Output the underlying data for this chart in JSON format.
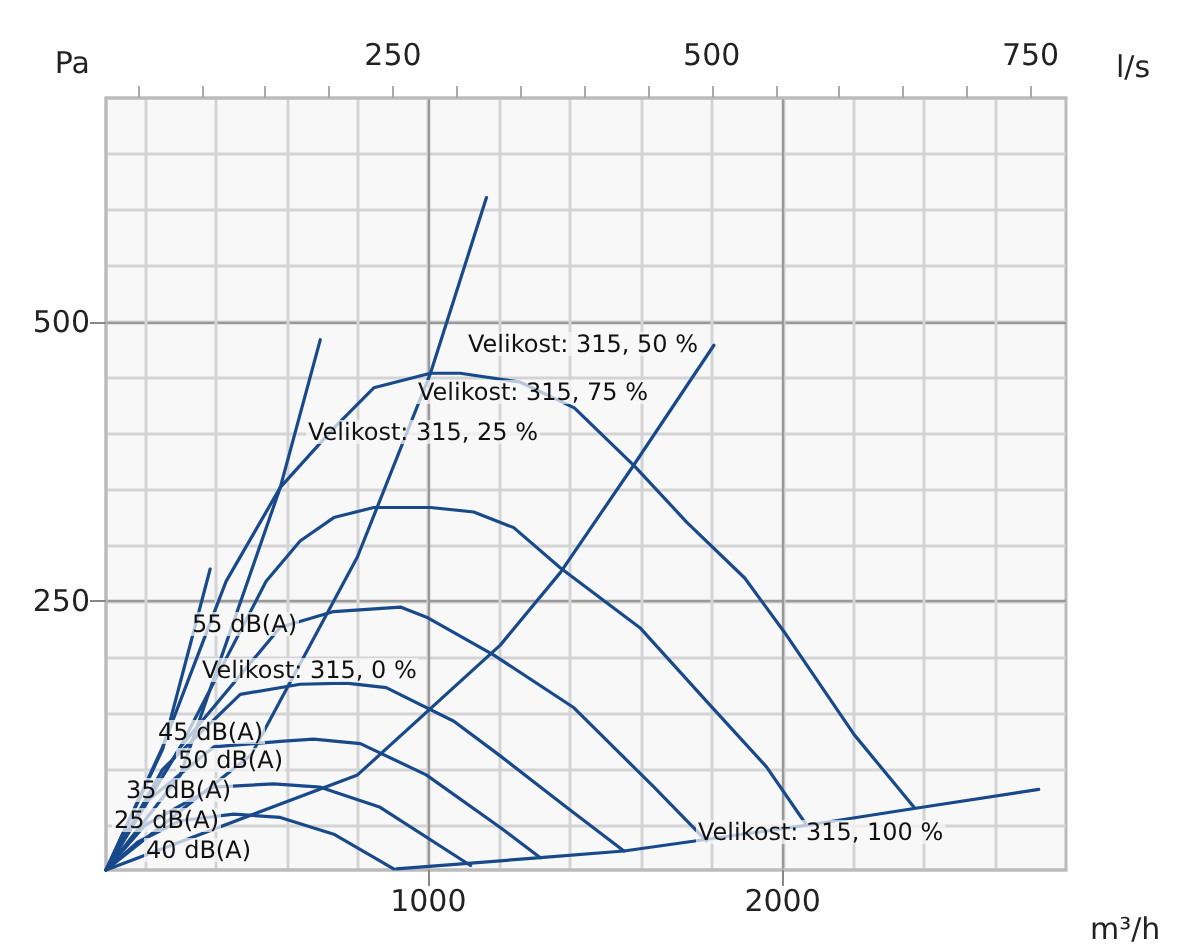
{
  "chart_data": {
    "type": "line",
    "xlabel": "m³/h",
    "ylabel": "Pa",
    "x2label": "l/s",
    "xlim": [
      90,
      2800
    ],
    "xticks": [
      {
        "value": 200,
        "label": null
      },
      {
        "value": 400,
        "label": null
      },
      {
        "value": 600,
        "label": null
      },
      {
        "value": 800,
        "label": null
      },
      1000,
      {
        "value": 1200,
        "label": null
      },
      {
        "value": 1400,
        "label": null
      },
      {
        "value": 1600,
        "label": null
      },
      {
        "value": 1800,
        "label": null
      },
      2000,
      {
        "value": 2200,
        "label": null
      },
      {
        "value": 2400,
        "label": null
      },
      {
        "value": 2600,
        "label": null
      }
    ],
    "x2lim": [
      25,
      777.8
    ],
    "x2ticks": [
      {
        "value": 50,
        "label": null
      },
      {
        "value": 100,
        "label": null
      },
      {
        "value": 150,
        "label": null
      },
      {
        "value": 200,
        "label": null
      },
      250,
      {
        "value": 300,
        "label": null
      },
      {
        "value": 350,
        "label": null
      },
      {
        "value": 400,
        "label": null
      },
      {
        "value": 450,
        "label": null
      },
      500,
      {
        "value": 550,
        "label": null
      },
      {
        "value": 600,
        "label": null
      },
      {
        "value": 650,
        "label": null
      },
      {
        "value": 700,
        "label": null
      },
      750
    ],
    "ylim": [
      10,
      700
    ],
    "yticks": [
      {
        "value": 50,
        "label": null
      },
      {
        "value": 100,
        "label": null
      },
      {
        "value": 150,
        "label": null
      },
      {
        "value": 200,
        "label": null
      },
      250,
      {
        "value": 300,
        "label": null
      },
      {
        "value": 350,
        "label": null
      },
      {
        "value": 400,
        "label": null
      },
      {
        "value": 450,
        "label": null
      },
      500,
      {
        "value": 550,
        "label": null
      },
      {
        "value": 600,
        "label": null
      },
      {
        "value": 650,
        "label": null
      }
    ],
    "grid": true,
    "marker": "none",
    "line_style": "solid",
    "series": [
      {
        "color": "#184a8b",
        "x": [
          90,
          250,
          384
        ],
        "values": [
          10,
          118,
          279
        ]
      },
      {
        "color": "#184a8b",
        "x": [
          90,
          300,
          582,
          695
        ],
        "values": [
          10,
          95,
          352,
          484
        ]
      },
      {
        "color": "#184a8b",
        "x": [
          90,
          500,
          800,
          1006,
          1164
        ],
        "values": [
          10,
          113,
          290,
          454,
          611
        ]
      },
      {
        "color": "#184a8b",
        "x": [
          90,
          800,
          1203,
          1373,
          1580,
          1806
        ],
        "values": [
          10,
          95,
          211,
          276,
          372,
          479
        ]
      },
      {
        "color": "#184a8b",
        "x": [
          910,
          1316,
          1552,
          2068,
          2371,
          2723
        ],
        "values": [
          11,
          21,
          27,
          50,
          65,
          82
        ]
      },
      {
        "color": "#184a8b",
        "x": [
          90,
          250,
          429,
          582,
          733,
          846,
          1006,
          1090,
          1260,
          1412,
          1582,
          1729,
          1893,
          2004,
          2202,
          2371
        ],
        "values": [
          10,
          120,
          268,
          352,
          405,
          441,
          454,
          454,
          446,
          423,
          371,
          321,
          271,
          223,
          131,
          66
        ]
      },
      {
        "color": "#184a8b",
        "x": [
          90,
          300,
          542,
          638,
          733,
          846,
          1006,
          1128,
          1241,
          1373,
          1599,
          1785,
          1955,
          2068
        ],
        "values": [
          10,
          120,
          268,
          304,
          325,
          334,
          334,
          330,
          316,
          280,
          226,
          161,
          102,
          50
        ]
      },
      {
        "color": "#184a8b",
        "x": [
          90,
          300,
          582,
          733,
          921,
          995,
          1185,
          1411,
          1637,
          1785
        ],
        "values": [
          10,
          120,
          227,
          241,
          245,
          236,
          202,
          155,
          84,
          36
        ]
      },
      {
        "color": "#184a8b",
        "x": [
          90,
          250,
          469,
          638,
          768,
          881,
          1072,
          1203,
          1390,
          1552
        ],
        "values": [
          10,
          100,
          167,
          176,
          177,
          173,
          143,
          112,
          66,
          27
        ]
      },
      {
        "color": "#184a8b",
        "x": [
          90,
          200,
          394,
          582,
          676,
          808,
          994,
          1203,
          1316
        ],
        "values": [
          10,
          70,
          120,
          125,
          127,
          123,
          95,
          48,
          21
        ]
      },
      {
        "color": "#184a8b",
        "x": [
          90,
          200,
          394,
          563,
          695,
          864,
          1119
        ],
        "values": [
          10,
          50,
          84,
          87,
          84,
          66,
          14
        ]
      },
      {
        "color": "#184a8b",
        "x": [
          90,
          180,
          299,
          450,
          582,
          733,
          902
        ],
        "values": [
          10,
          35,
          54,
          60,
          57,
          42,
          11
        ]
      }
    ],
    "annotations": [
      "Velikost: 315, 50 %",
      "Velikost: 315, 75 %",
      "Velikost: 315, 25 %",
      "55 dB(A)",
      "Velikost: 315, 0 %",
      "45 dB(A)",
      "50 dB(A)",
      "35 dB(A)",
      "25 dB(A)",
      "40 dB(A)",
      "Velikost: 315, 100 %"
    ]
  }
}
